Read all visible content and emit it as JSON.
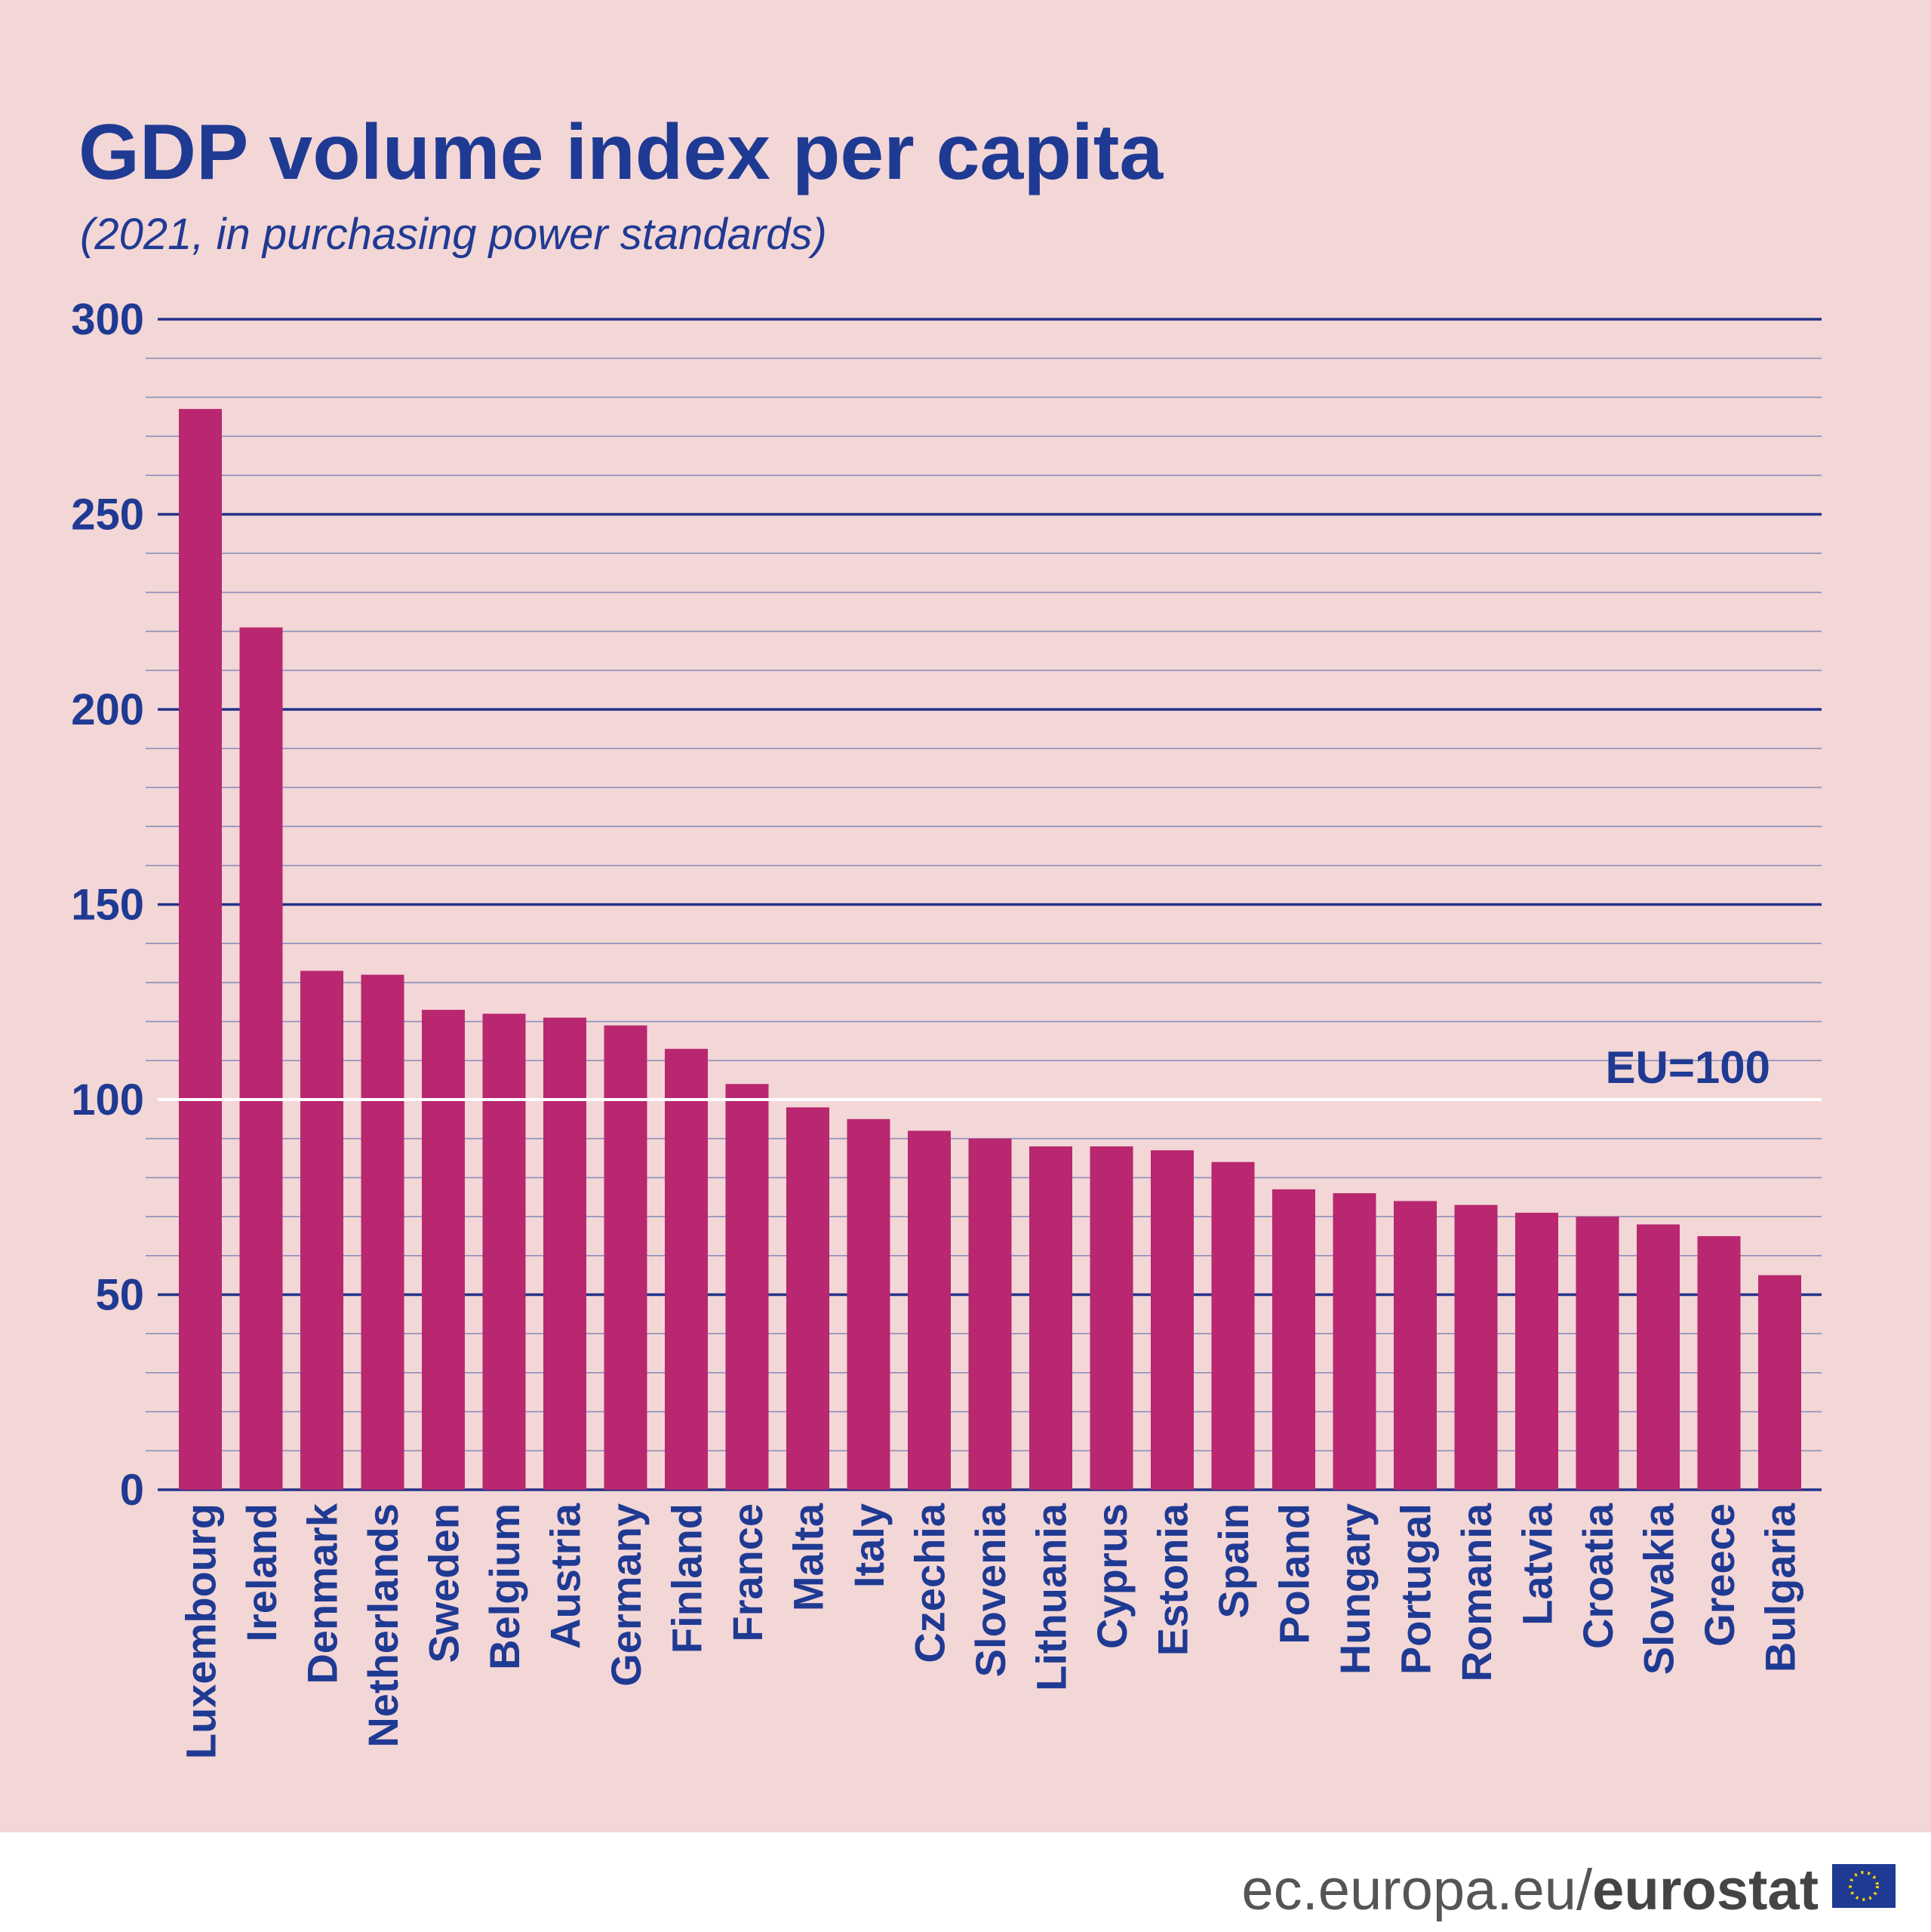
{
  "chart_data": {
    "type": "bar",
    "title": "GDP volume index per capita",
    "subtitle": "(2021, in purchasing power standards)",
    "categories": [
      "Luxembourg",
      "Ireland",
      "Denmark",
      "Netherlands",
      "Sweden",
      "Belgium",
      "Austria",
      "Germany",
      "Finland",
      "France",
      "Malta",
      "Italy",
      "Czechia",
      "Slovenia",
      "Lithuania",
      "Cyprus",
      "Estonia",
      "Spain",
      "Poland",
      "Hungary",
      "Portugal",
      "Romania",
      "Latvia",
      "Croatia",
      "Slovakia",
      "Greece",
      "Bulgaria"
    ],
    "values": [
      277,
      221,
      133,
      132,
      123,
      122,
      121,
      119,
      113,
      104,
      98,
      95,
      92,
      90,
      88,
      88,
      87,
      84,
      77,
      76,
      74,
      73,
      71,
      70,
      68,
      65,
      55
    ],
    "color": "#b8276f",
    "ylim": [
      0,
      300
    ],
    "yticks": [
      0,
      50,
      100,
      150,
      200,
      250,
      300
    ],
    "minor_yticks": [
      10,
      20,
      30,
      40,
      60,
      70,
      80,
      90,
      110,
      120,
      130,
      140,
      160,
      170,
      180,
      190,
      210,
      220,
      230,
      240,
      260,
      270,
      280,
      290
    ],
    "grid": true,
    "reference_line": {
      "value": 100,
      "label": "EU=100"
    },
    "footer": {
      "site": "ec.europa.eu/",
      "brand": "eurostat"
    }
  }
}
